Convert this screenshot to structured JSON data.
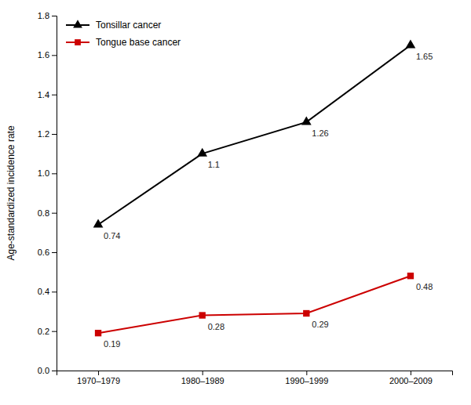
{
  "chart_data": {
    "type": "line",
    "categories": [
      "1970–1979",
      "1980–1989",
      "1990–1999",
      "2000–2009"
    ],
    "series": [
      {
        "name": "Tonsillar cancer",
        "color": "#000000",
        "marker": "triangle",
        "values": [
          0.74,
          1.1,
          1.26,
          1.65
        ]
      },
      {
        "name": "Tongue base cancer",
        "color": "#cc0000",
        "marker": "square",
        "values": [
          0.19,
          0.28,
          0.29,
          0.48
        ]
      }
    ],
    "y_label": "Age-standardized incidence rate",
    "ylim": [
      0.0,
      1.8
    ],
    "yticks": [
      {
        "value": 0.0,
        "label": "0.0"
      },
      0.2,
      0.4,
      0.6,
      0.8,
      {
        "value": 1.0,
        "label": "1.0"
      },
      1.2,
      1.4,
      1.6,
      1.8
    ],
    "data_labels": true,
    "grid": false,
    "legend": "upper left"
  }
}
